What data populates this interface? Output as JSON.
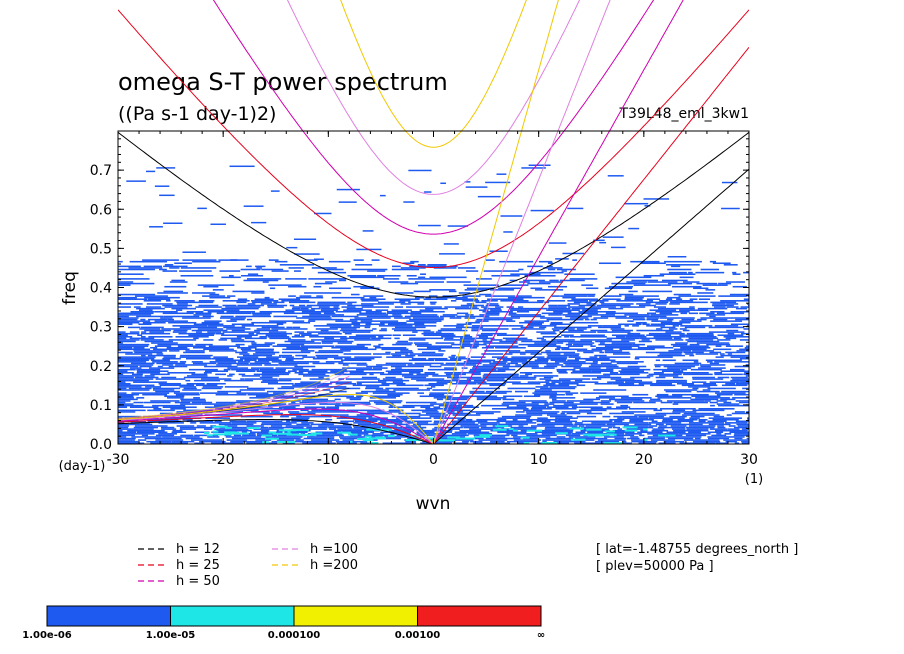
{
  "chart_data": {
    "type": "heatmap",
    "title": "omega S-T power spectrum",
    "subtitle": "((Pa s-1 day-1)2)",
    "run_label": "T39L48_eml_3kw1",
    "xlabel": "wvn",
    "ylabel": "freq",
    "x_unit": "(1)",
    "y_unit": "(day-1)",
    "xlim": [
      -30,
      30
    ],
    "ylim": [
      0,
      0.8
    ],
    "x_ticks": [
      "-30",
      "-20",
      "-10",
      "0",
      "10",
      "20",
      "30"
    ],
    "y_ticks": [
      "0.0",
      "0.1",
      "0.2",
      "0.3",
      "0.4",
      "0.5",
      "0.6",
      "0.7"
    ],
    "info_lines": [
      "[ lat=-1.48755 degrees_north ]",
      "[ plev=50000 Pa ]"
    ],
    "dispersion_curves": [
      {
        "name": "h = 12",
        "h": 12,
        "color": "#000000"
      },
      {
        "name": "h = 25",
        "h": 25,
        "color": "#e8001c"
      },
      {
        "name": "h = 50",
        "h": 50,
        "color": "#d000b0"
      },
      {
        "name": "h =100",
        "h": 100,
        "color": "#e080e0"
      },
      {
        "name": "h =200",
        "h": 200,
        "color": "#f0c800"
      }
    ],
    "colorbar": {
      "colors": [
        "#1e5af0",
        "#1ee6e6",
        "#f0f000",
        "#f01e1e"
      ],
      "labels": [
        "1.00e-06",
        "1.00e-05",
        "0.000100",
        "0.00100",
        "∞"
      ]
    },
    "field_summary": {
      "level_1e-6_to_1e-5": "widespread over |freq| < 0.47, densest below 0.4",
      "level_1e-5_to_1e-4": "patches near freq < 0.05, wvn -20 to 20",
      "level_above_1e-4": "none visible"
    }
  }
}
